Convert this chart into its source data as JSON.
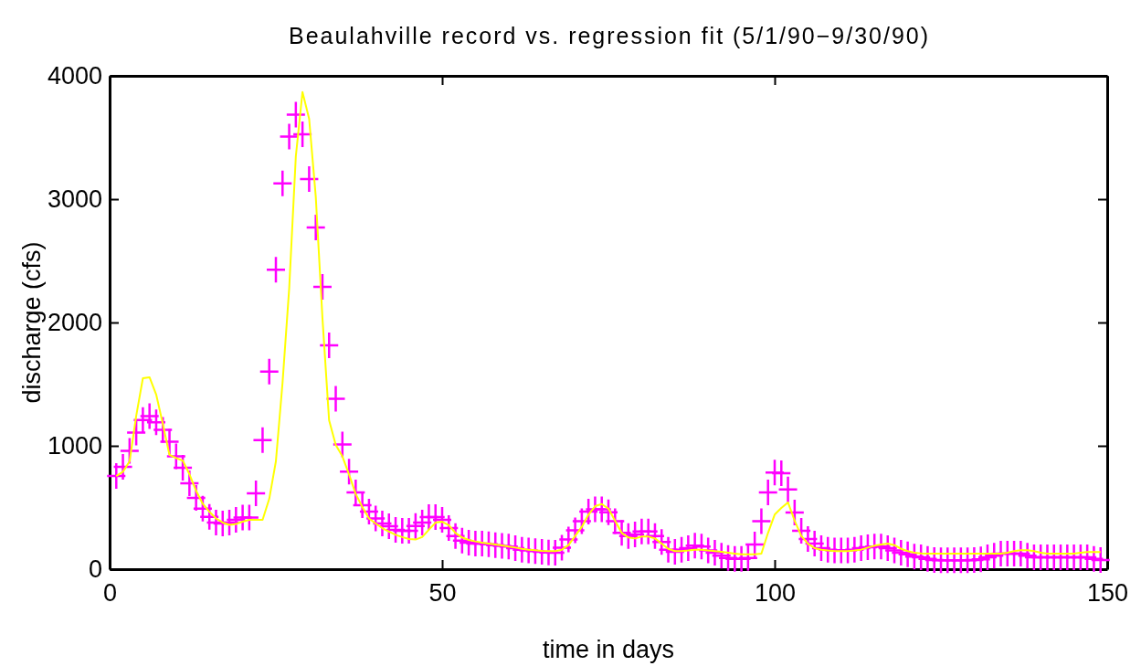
{
  "chart_data": {
    "type": "scatter",
    "title": "Beaulahville record vs. regression fit (5/1/90−9/30/90)",
    "xlabel": "time in days",
    "ylabel": "discharge (cfs)",
    "xlim": [
      0,
      150
    ],
    "xticks": [
      0,
      50,
      100,
      150
    ],
    "ylim": [
      0,
      4000
    ],
    "yticks": [
      0,
      1000,
      2000,
      3000,
      4000
    ],
    "marker": "cross",
    "x": [
      1,
      2,
      3,
      4,
      5,
      6,
      7,
      8,
      9,
      10,
      11,
      12,
      13,
      14,
      15,
      16,
      17,
      18,
      19,
      20,
      21,
      22,
      23,
      24,
      25,
      26,
      27,
      28,
      29,
      30,
      31,
      32,
      33,
      34,
      35,
      36,
      37,
      38,
      39,
      40,
      41,
      42,
      43,
      44,
      45,
      46,
      47,
      48,
      49,
      50,
      51,
      52,
      53,
      54,
      55,
      56,
      57,
      58,
      59,
      60,
      61,
      62,
      63,
      64,
      65,
      66,
      67,
      68,
      69,
      70,
      71,
      72,
      73,
      74,
      75,
      76,
      77,
      78,
      79,
      80,
      81,
      82,
      83,
      84,
      85,
      86,
      87,
      88,
      89,
      90,
      91,
      92,
      93,
      94,
      95,
      96,
      97,
      98,
      99,
      100,
      101,
      102,
      103,
      104,
      105,
      106,
      107,
      108,
      109,
      110,
      111,
      112,
      113,
      114,
      115,
      116,
      117,
      118,
      119,
      120,
      121,
      122,
      123,
      124,
      125,
      126,
      127,
      128,
      129,
      130,
      131,
      132,
      133,
      134,
      135,
      136,
      137,
      138,
      139,
      140,
      141,
      142,
      143,
      144,
      145,
      146,
      147,
      148,
      149
    ],
    "series": [
      {
        "type": "line",
        "color": "#ffff00",
        "line_style": "solid",
        "marker": "none",
        "values": [
          755,
          790,
          874,
          1244,
          1548,
          1556,
          1416,
          1178,
          927,
          901,
          880,
          770,
          637,
          530,
          466,
          411,
          378,
          359,
          366,
          385,
          400,
          400,
          400,
          570,
          874,
          1511,
          2276,
          3348,
          3869,
          3652,
          3017,
          2037,
          1207,
          1007,
          914,
          768,
          610,
          504,
          411,
          370,
          333,
          305,
          279,
          260,
          244,
          240,
          260,
          319,
          377,
          385,
          356,
          294,
          257,
          237,
          225,
          215,
          207,
          200,
          193,
          183,
          175,
          165,
          158,
          153,
          148,
          146,
          146,
          158,
          195,
          269,
          343,
          442,
          511,
          528,
          491,
          393,
          294,
          257,
          249,
          264,
          264,
          249,
          207,
          165,
          146,
          146,
          151,
          158,
          158,
          151,
          146,
          141,
          133,
          126,
          121,
          121,
          121,
          126,
          294,
          442,
          496,
          541,
          393,
          269,
          207,
          170,
          158,
          151,
          146,
          146,
          146,
          151,
          158,
          175,
          190,
          200,
          207,
          195,
          165,
          146,
          133,
          128,
          126,
          126,
          126,
          126,
          126,
          126,
          126,
          126,
          126,
          126,
          126,
          126,
          133,
          146,
          153,
          153,
          146,
          133,
          126,
          126,
          126,
          126,
          126,
          133,
          138,
          138,
          138
        ]
      },
      {
        "color": "#ff00ff",
        "values": [
          755,
          830,
          960,
          1107,
          1210,
          1240,
          1190,
          1130,
          1033,
          914,
          822,
          696,
          578,
          490,
          424,
          377,
          370,
          377,
          400,
          419,
          419,
          615,
          1046,
          1601,
          2427,
          3128,
          3507,
          3686,
          3526,
          3163,
          2770,
          2289,
          1815,
          1382,
          1012,
          790,
          622,
          518,
          467,
          411,
          370,
          348,
          319,
          311,
          311,
          350,
          378,
          422,
          422,
          400,
          333,
          269,
          232,
          215,
          207,
          207,
          202,
          195,
          188,
          183,
          170,
          158,
          151,
          146,
          141,
          136,
          133,
          175,
          240,
          314,
          388,
          467,
          486,
          486,
          462,
          388,
          294,
          269,
          281,
          306,
          306,
          269,
          220,
          158,
          141,
          158,
          170,
          190,
          183,
          151,
          133,
          109,
          91,
          84,
          84,
          90,
          200,
          388,
          622,
          783,
          778,
          647,
          459,
          311,
          244,
          207,
          170,
          158,
          151,
          151,
          151,
          158,
          170,
          178,
          183,
          183,
          170,
          151,
          133,
          121,
          101,
          96,
          84,
          74,
          72,
          72,
          72,
          72,
          72,
          74,
          80,
          96,
          109,
          126,
          126,
          126,
          126,
          109,
          96,
          96,
          96,
          96,
          96,
          96,
          96,
          96,
          96,
          84,
          74
        ]
      }
    ]
  }
}
